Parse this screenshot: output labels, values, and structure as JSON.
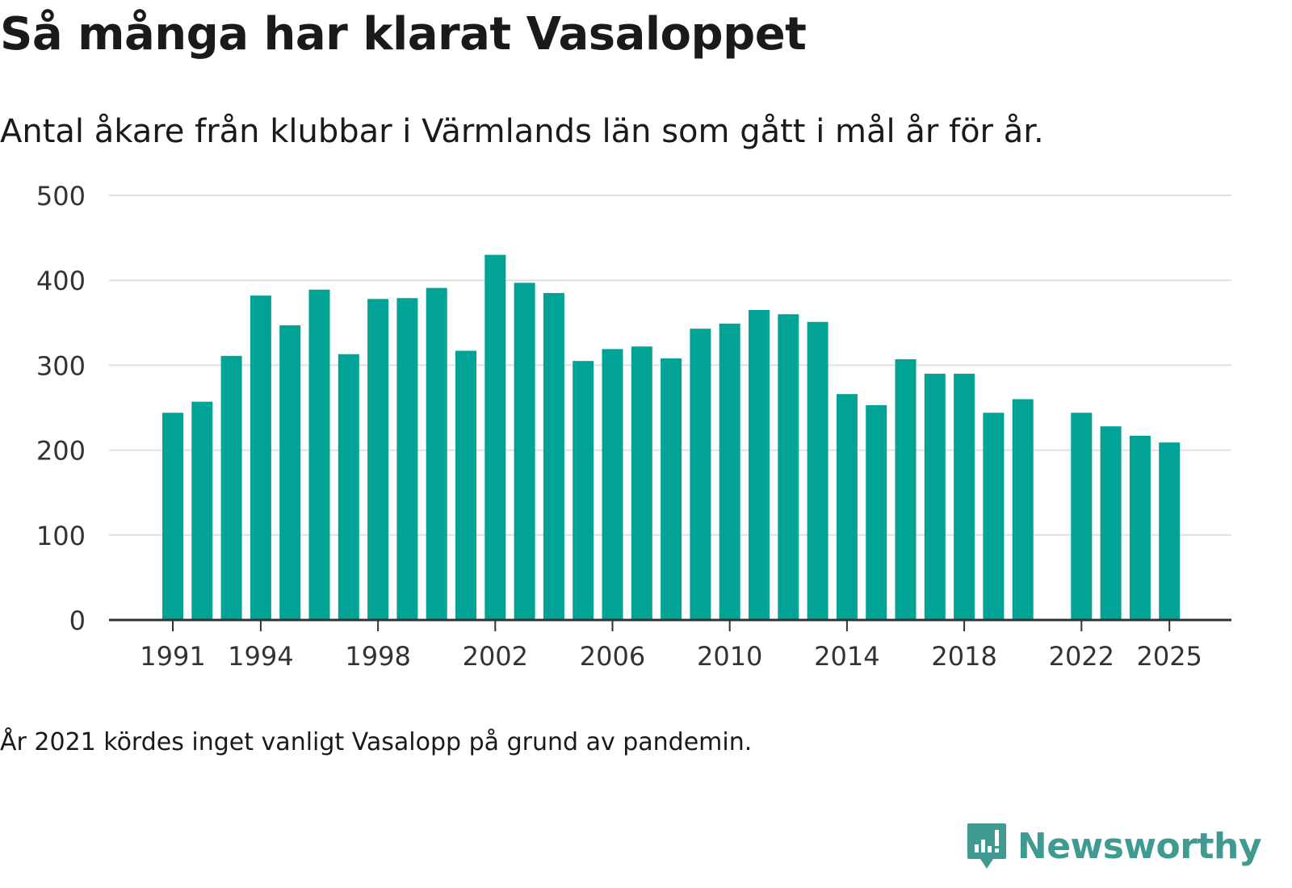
{
  "title": "Så många har klarat Vasaloppet",
  "subtitle": "Antal åkare från klubbar i Värmlands län som gått i mål år för år.",
  "footnote": "År 2021 kördes inget vanligt Vasalopp på grund av pandemin.",
  "brand": {
    "name": "Newsworthy",
    "color": "#3f9a91"
  },
  "colors": {
    "bar": "#00a396",
    "grid": "#e0e0e0",
    "axis": "#333333"
  },
  "chart_data": {
    "type": "bar",
    "title": "Så många har klarat Vasaloppet",
    "xlabel": "",
    "ylabel": "",
    "ylim": [
      0,
      500
    ],
    "yticks": [
      0,
      100,
      200,
      300,
      400,
      500
    ],
    "xtick_labels": [
      1991,
      1994,
      1998,
      2002,
      2006,
      2010,
      2014,
      2018,
      2022,
      2025
    ],
    "grid": true,
    "categories": [
      1991,
      1992,
      1993,
      1994,
      1995,
      1996,
      1997,
      1998,
      1999,
      2000,
      2001,
      2002,
      2003,
      2004,
      2005,
      2006,
      2007,
      2008,
      2009,
      2010,
      2011,
      2012,
      2013,
      2014,
      2015,
      2016,
      2017,
      2018,
      2019,
      2020,
      2021,
      2022,
      2023,
      2024,
      2025
    ],
    "values": [
      244,
      257,
      311,
      382,
      347,
      389,
      313,
      378,
      379,
      391,
      317,
      430,
      397,
      385,
      305,
      319,
      322,
      308,
      343,
      349,
      365,
      360,
      351,
      266,
      253,
      307,
      290,
      290,
      244,
      260,
      null,
      244,
      228,
      217,
      209
    ]
  }
}
